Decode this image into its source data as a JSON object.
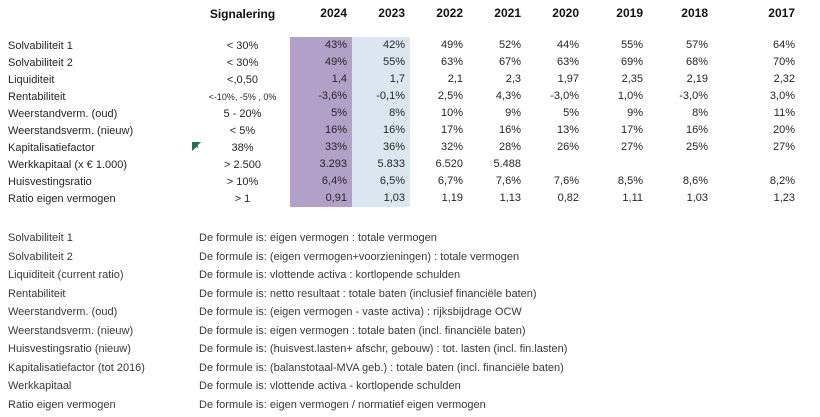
{
  "colors": {
    "highlight_2024": "#b1a0c7",
    "highlight_2023": "#dce6f1",
    "marker_green": "#217346"
  },
  "table": {
    "headers": [
      "Signalering",
      "2024",
      "2023",
      "2022",
      "2021",
      "2020",
      "2019",
      "2018",
      "2017"
    ],
    "rows": [
      {
        "label": "Solvabiliteit 1",
        "signalering": "< 30%",
        "sig_small": false,
        "marker": false,
        "values": [
          "43%",
          "42%",
          "49%",
          "52%",
          "44%",
          "55%",
          "57%",
          "64%"
        ]
      },
      {
        "label": "Solvabiliteit 2",
        "signalering": "< 30%",
        "sig_small": false,
        "marker": false,
        "values": [
          "49%",
          "55%",
          "63%",
          "67%",
          "63%",
          "69%",
          "68%",
          "70%"
        ]
      },
      {
        "label": "Liquiditeit",
        "signalering": "<,0,50",
        "sig_small": false,
        "marker": false,
        "values": [
          "1,4",
          "1,7",
          "2,1",
          "2,3",
          "1,97",
          "2,35",
          "2,19",
          "2,32"
        ]
      },
      {
        "label": "Rentabiliteit",
        "signalering": "<-10%, -5% , 0%",
        "sig_small": true,
        "marker": false,
        "values": [
          "-3,6%",
          "-0,1%",
          "2,5%",
          "4,3%",
          "-3,0%",
          "1,0%",
          "-3,0%",
          "3,0%"
        ]
      },
      {
        "label": "Weerstandverm. (oud)",
        "signalering": "5 - 20%",
        "sig_small": false,
        "marker": false,
        "values": [
          "5%",
          "8%",
          "10%",
          "9%",
          "5%",
          "9%",
          "8%",
          "11%"
        ]
      },
      {
        "label": "Weerstandsverm. (nieuw)",
        "signalering": "< 5%",
        "sig_small": false,
        "marker": false,
        "values": [
          "16%",
          "16%",
          "17%",
          "16%",
          "13%",
          "17%",
          "16%",
          "20%"
        ]
      },
      {
        "label": "Kapitalisatiefactor",
        "signalering": "38%",
        "sig_small": false,
        "marker": true,
        "values": [
          "33%",
          "36%",
          "32%",
          "28%",
          "26%",
          "27%",
          "25%",
          "27%"
        ]
      },
      {
        "label": "Werkkapitaal (x € 1.000)",
        "signalering": "> 2.500",
        "sig_small": false,
        "marker": false,
        "values": [
          "3.293",
          "5.833",
          "6.520",
          "5.488",
          "",
          "",
          "",
          ""
        ]
      },
      {
        "label": "Huisvestingsratio",
        "signalering": "> 10%",
        "sig_small": false,
        "marker": false,
        "values": [
          "6,4%",
          "6,5%",
          "6,7%",
          "7,6%",
          "7,6%",
          "8,5%",
          "8,6%",
          "8,2%"
        ]
      },
      {
        "label": "Ratio eigen vermogen",
        "signalering": "> 1",
        "sig_small": false,
        "marker": false,
        "values": [
          "0,91",
          "1,03",
          "1,19",
          "1,13",
          "0,82",
          "1,11",
          "1,03",
          "1,23"
        ]
      }
    ]
  },
  "definitions": [
    {
      "label": "Solvabiliteit 1",
      "formula": "De formule is: eigen vermogen : totale vermogen"
    },
    {
      "label": "Solvabiliteit 2",
      "formula": "De formule is: (eigen vermogen+voorzieningen) : totale vermogen"
    },
    {
      "label": "Liquiditeit (current ratio)",
      "formula": "De formule is: vlottende activa : kortlopende schulden"
    },
    {
      "label": "Rentabiliteit",
      "formula": "De formule is: netto resultaat : totale baten (inclusief financiële baten)"
    },
    {
      "label": "Weerstandverm. (oud)",
      "formula": "De formule is: (eigen vermogen - vaste activa) : rijksbijdrage OCW"
    },
    {
      "label": "Weerstandsverm. (nieuw)",
      "formula": "De formule is: eigen vermogen : totale baten (incl. financiële baten)"
    },
    {
      "label": "Huisvestingsratio (nieuw)",
      "formula": "De formule is: (huisvest.lasten+ afschr, gebouw) : tot. lasten (incl. fin.lasten)"
    },
    {
      "label": "Kapitalisatiefactor (tot 2016)",
      "formula": "De formule is: (balanstotaal-MVA geb.) : totale baten (incl. financiële baten)"
    },
    {
      "label": "Werkkapitaal",
      "formula": "De formule is: vlottende activa - kortlopende schulden"
    },
    {
      "label": "Ratio eigen vermogen",
      "formula": "De formule is: eigen vermogen / normatief eigen vermogen"
    }
  ]
}
